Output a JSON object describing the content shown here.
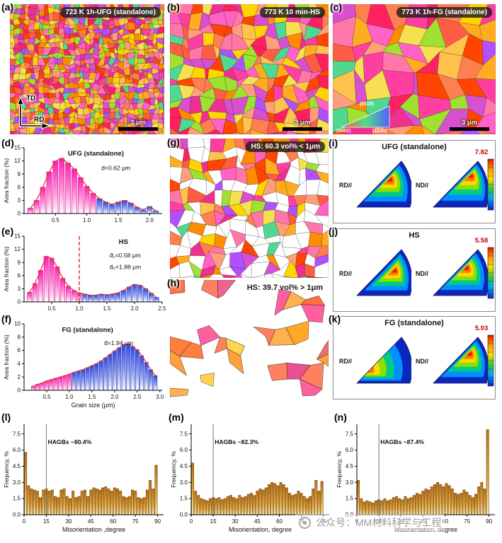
{
  "figure": {
    "watermark_text": "公众号：MM材料科学与工程"
  },
  "style": {
    "ebsd_palette": [
      "#ff3fa0",
      "#ff62c4",
      "#ff8c00",
      "#ffac20",
      "#ffd400",
      "#ff5c44",
      "#f03090",
      "#ff4500",
      "#ff9e7a",
      "#d84fd0",
      "#a0e030",
      "#50d890",
      "#f4e050",
      "#ff7f50",
      "#b050ff",
      "#ff2060",
      "#ffc24d",
      "#ff77a9"
    ],
    "warm_palette": [
      "#ff7f3f",
      "#ff5f9f",
      "#ffa040",
      "#ff8060",
      "#e85090",
      "#ffb050",
      "#f06292",
      "#ff7043",
      "#ffa726",
      "#ec407a",
      "#e57373",
      "#ffd54f",
      "#8bc34a"
    ],
    "bar_pink_edge": "#cf1590",
    "bar_blue_edge": "#2436b8",
    "bar_amber_edge": "#7c4c08",
    "envelope_red": "#e23b2e",
    "wedge_colors": [
      "#0a28c0",
      "#0090ff",
      "#00cc88",
      "#8ce000",
      "#ffd800",
      "#ff7c00",
      "#f01800"
    ],
    "max_value_color": "#c40000"
  },
  "maps": {
    "a": {
      "letter": "(a)",
      "title": "723 K 1h-UFG (standalone)",
      "scale_label": "3 μm",
      "axis_vertical": "TD",
      "axis_horizontal": "RD"
    },
    "b": {
      "letter": "(b)",
      "title": "773 K 10 min-HS",
      "scale_label": "3 μm"
    },
    "c": {
      "letter": "(c)",
      "title": "773 K 1h-FG (standalone)",
      "scale_label": "3 μm",
      "ipf_labels": [
        "(0001)",
        "(011̄0)",
        "(1̄21̄0)"
      ]
    },
    "g": {
      "letter": "(g)",
      "title": "HS: 60.3 vol% < 1μm"
    },
    "h": {
      "letter": "(h)",
      "title": "HS: 39.7 vol% > 1μm"
    }
  },
  "pole_figures": [
    {
      "id": "i",
      "letter": "(i)",
      "title": "UFG (standalone)",
      "left_label": "RD//",
      "right_label": "ND//",
      "max": "7.82"
    },
    {
      "id": "j",
      "letter": "(j)",
      "title": "HS",
      "left_label": "RD//",
      "right_label": "ND//",
      "max": "5.58"
    },
    {
      "id": "k",
      "letter": "(k)",
      "title": "FG (standalone)",
      "left_label": "RD//",
      "right_label": "ND//",
      "max": "5.03"
    }
  ],
  "chart_data": [
    {
      "id": "d",
      "panel_letter": "(d)",
      "type": "bar",
      "style": "pinkblue",
      "title": "UFG (standalone)",
      "title_fx": 0.52,
      "title_fy": 0.12,
      "annotations": [
        {
          "text": "d̄=0.62 μm",
          "fx": 0.56,
          "fy": 0.34,
          "bold": false
        }
      ],
      "ylabel": "Area fraction (%)",
      "xlabel": "",
      "xlim": [
        0,
        2.2
      ],
      "ylim": [
        0,
        15
      ],
      "xticks": [
        0.5,
        1.0,
        1.5,
        2.0
      ],
      "xtick_labels": [
        "0.5",
        "1.0",
        "1.5",
        "2.0"
      ],
      "yticks": [
        0,
        3,
        6,
        9,
        12,
        15
      ],
      "ytick_labels": [
        "0",
        "3",
        "6",
        "9",
        "12",
        "15"
      ],
      "x_start": 0.1,
      "x_step": 0.1,
      "values": [
        1.2,
        3.0,
        6.0,
        9.5,
        12.0,
        12.6,
        11.5,
        10.2,
        8.2,
        6.2,
        4.6,
        3.4,
        2.6,
        2.0,
        2.6,
        3.0,
        2.4,
        1.4,
        0.8,
        1.6,
        0.6
      ],
      "color_split_x": 1.18,
      "envelope": true
    },
    {
      "id": "e",
      "panel_letter": "(e)",
      "type": "bar",
      "style": "pinkblue",
      "title": "HS",
      "title_fx": 0.72,
      "title_fy": 0.12,
      "annotations": [
        {
          "text": "d̄₁=0.58 μm",
          "fx": 0.62,
          "fy": 0.32,
          "bold": false
        },
        {
          "text": "d̄₂=1.88 μm",
          "fx": 0.62,
          "fy": 0.5,
          "bold": false
        }
      ],
      "ylabel": "Area fraction (%)",
      "xlabel": "",
      "xlim": [
        0,
        2.5
      ],
      "ylim": [
        0,
        15
      ],
      "xticks": [
        0.5,
        1.0,
        1.5,
        2.0,
        2.5
      ],
      "xtick_labels": [
        "0.5",
        "1.0",
        "1.5",
        "2.0",
        "2.5"
      ],
      "yticks": [
        0,
        3,
        6,
        9,
        12,
        15
      ],
      "ytick_labels": [
        "0",
        "3",
        "6",
        "9",
        "12",
        "15"
      ],
      "x_start": 0.1,
      "x_step": 0.1,
      "values": [
        2.2,
        4.2,
        7.2,
        10.4,
        10.0,
        8.0,
        5.4,
        3.6,
        2.6,
        2.0,
        1.8,
        1.5,
        1.5,
        1.8,
        1.6,
        1.8,
        2.0,
        2.6,
        3.4,
        4.0,
        3.8,
        3.0,
        2.0,
        1.0
      ],
      "color_split_x": 1.02,
      "envelope": true,
      "vline": {
        "x": 1.0,
        "dash": true,
        "color": "#d42a1e"
      }
    },
    {
      "id": "f",
      "panel_letter": "(f)",
      "type": "bar",
      "style": "pinkblue",
      "title": "FG (standalone)",
      "title_fx": 0.46,
      "title_fy": 0.12,
      "annotations": [
        {
          "text": "d̄=1.94 μm",
          "fx": 0.58,
          "fy": 0.32,
          "bold": false
        }
      ],
      "ylabel": "Area fraction (%)",
      "xlabel": "Grain size (μm)",
      "xlim": [
        0,
        3.05
      ],
      "ylim": [
        0,
        10
      ],
      "xticks": [
        0.5,
        1.0,
        1.5,
        2.0,
        2.5,
        3.0
      ],
      "xtick_labels": [
        "0.5",
        "1.0",
        "1.5",
        "2.0",
        "2.5",
        "3.0"
      ],
      "yticks": [
        0,
        2,
        4,
        6,
        8,
        10
      ],
      "ytick_labels": [
        "0",
        "2",
        "4",
        "6",
        "8",
        "10"
      ],
      "x_start": 0.2,
      "x_step": 0.1,
      "values": [
        0.6,
        0.9,
        1.1,
        1.4,
        1.6,
        1.8,
        2.0,
        2.2,
        2.4,
        2.7,
        2.9,
        3.1,
        3.4,
        3.7,
        4.0,
        4.4,
        4.9,
        5.4,
        5.9,
        6.4,
        6.9,
        7.0,
        6.6,
        6.1,
        5.2,
        4.2,
        3.1,
        2.2
      ],
      "color_split_x": 1.02,
      "envelope": true
    },
    {
      "id": "l",
      "panel_letter": "(l)",
      "type": "bar",
      "style": "amber",
      "title": "",
      "title_fx": 0,
      "title_fy": 0,
      "annotations": [
        {
          "text": "HAGBs ~80.4%",
          "fx": 0.17,
          "fy": 0.22,
          "bold": true
        }
      ],
      "ylabel": "Frequency, %",
      "xlabel": "Misorientation ,degree",
      "xlim": [
        0,
        94
      ],
      "ylim": [
        0,
        8.4
      ],
      "xticks": [
        0,
        15,
        30,
        45,
        60,
        75,
        90
      ],
      "xtick_labels": [
        "0",
        "15",
        "30",
        "45",
        "60",
        "75",
        "90"
      ],
      "yticks": [
        0,
        1.5,
        3,
        4.5,
        6,
        7.5
      ],
      "ytick_labels": [
        "0.0",
        "1.5",
        "3.0",
        "4.5",
        "6.0",
        "7.5"
      ],
      "x_start": 1,
      "x_step": 2,
      "values": [
        5.8,
        2.7,
        2.4,
        2.3,
        2.2,
        1.6,
        2.3,
        2.4,
        2.2,
        2.3,
        1.7,
        1.6,
        2.3,
        2.4,
        1.7,
        1.5,
        2.2,
        1.6,
        1.7,
        2.2,
        2.3,
        1.7,
        2.3,
        2.5,
        2.4,
        2.3,
        2.5,
        2.6,
        2.4,
        2.2,
        2.5,
        2.4,
        2.2,
        1.7,
        1.6,
        1.7,
        2.3,
        2.2,
        1.6,
        1.5,
        1.6,
        2.3,
        3.2,
        2.4,
        4.6
      ],
      "envelope": false,
      "vline": {
        "x": 15,
        "dash": false,
        "color": "#666666"
      }
    },
    {
      "id": "m",
      "panel_letter": "(m)",
      "type": "bar",
      "style": "amber",
      "title": "",
      "title_fx": 0,
      "title_fy": 0,
      "annotations": [
        {
          "text": "HAGBs ~82.3%",
          "fx": 0.17,
          "fy": 0.22,
          "bold": true
        }
      ],
      "ylabel": "Frequency, %",
      "xlabel": "Misorientation, degree",
      "xlim": [
        0,
        94
      ],
      "ylim": [
        0,
        8.4
      ],
      "xticks": [
        0,
        15,
        30,
        45,
        60,
        75,
        90
      ],
      "xtick_labels": [
        "0",
        "15",
        "30",
        "45",
        "60",
        "75",
        "90"
      ],
      "yticks": [
        0,
        1.5,
        3,
        4.5,
        6,
        7.5
      ],
      "ytick_labels": [
        "0.0",
        "1.5",
        "3.0",
        "4.5",
        "6.0",
        "7.5"
      ],
      "x_start": 1,
      "x_step": 2,
      "values": [
        4.8,
        2.2,
        1.8,
        1.5,
        1.4,
        1.3,
        1.5,
        1.6,
        1.5,
        1.6,
        1.4,
        1.5,
        1.7,
        1.8,
        1.6,
        1.5,
        1.8,
        1.6,
        1.7,
        1.9,
        2.0,
        1.8,
        2.2,
        2.4,
        2.3,
        2.5,
        2.8,
        3.0,
        2.9,
        2.7,
        3.0,
        2.8,
        2.5,
        2.0,
        1.8,
        1.9,
        2.2,
        2.0,
        1.7,
        1.5,
        1.7,
        2.4,
        3.2,
        2.2,
        3.1
      ],
      "envelope": false,
      "vline": {
        "x": 15,
        "dash": false,
        "color": "#666666"
      }
    },
    {
      "id": "n",
      "panel_letter": "(n)",
      "type": "bar",
      "style": "amber",
      "title": "",
      "title_fx": 0,
      "title_fy": 0,
      "annotations": [
        {
          "text": "HAGBs ~87.4%",
          "fx": 0.17,
          "fy": 0.22,
          "bold": true
        }
      ],
      "ylabel": "Frequency, %",
      "xlabel": "Misorientation, degree",
      "xlim": [
        0,
        94
      ],
      "ylim": [
        0,
        8.4
      ],
      "xticks": [
        0,
        15,
        30,
        45,
        60,
        75,
        90
      ],
      "xtick_labels": [
        "0",
        "15",
        "30",
        "45",
        "60",
        "75",
        "90"
      ],
      "yticks": [
        0,
        1.5,
        3,
        4.5,
        6,
        7.5
      ],
      "ytick_labels": [
        "0.0",
        "1.5",
        "3.0",
        "4.5",
        "6.0",
        "7.5"
      ],
      "x_start": 1,
      "x_step": 2,
      "values": [
        3.2,
        1.5,
        1.2,
        1.3,
        1.2,
        1.1,
        1.3,
        1.4,
        1.3,
        1.5,
        1.3,
        1.4,
        1.6,
        1.7,
        1.5,
        1.4,
        1.7,
        1.5,
        1.6,
        1.8,
        2.0,
        1.9,
        2.2,
        2.4,
        2.3,
        2.6,
        2.8,
        3.0,
        2.8,
        2.6,
        2.9,
        2.7,
        2.4,
        2.0,
        1.9,
        2.0,
        2.3,
        2.1,
        1.8,
        1.6,
        1.9,
        2.6,
        3.0,
        2.4,
        7.9
      ],
      "envelope": false,
      "vline": {
        "x": 15,
        "dash": false,
        "color": "#666666"
      }
    }
  ]
}
